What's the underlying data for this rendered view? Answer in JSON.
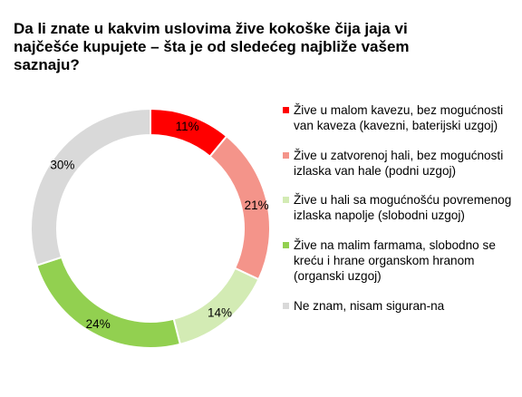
{
  "chart_data": {
    "type": "pie",
    "title": "Da li znate u kakvim uslovima žive kokoške čija jaja vi najčešće kupujete – šta je od sledećeg najbliže vašem saznaju?",
    "donut": true,
    "legend_position": "right",
    "slices": [
      {
        "label": "Žive u malom kavezu, bez mogućnosti van kaveza (kavezni, baterijski uzgoj)",
        "value": 11,
        "display": "11%",
        "color": "#ff0000"
      },
      {
        "label": "Žive u zatvorenoj hali, bez mogućnosti izlaska van hale (podni uzgoj)",
        "value": 21,
        "display": "21%",
        "color": "#f4948a"
      },
      {
        "label": "Žive u hali sa mogućnošću povremenog izlaska napolje (slobodni uzgoj)",
        "value": 14,
        "display": "14%",
        "color": "#d3ebb4"
      },
      {
        "label": "Žive na malim farmama, slobodno se kreću i hrane organskom hranom (organski uzgoj)",
        "value": 24,
        "display": "24%",
        "color": "#92d050"
      },
      {
        "label": "Ne znam, nisam siguran-na",
        "value": 30,
        "display": "30%",
        "color": "#d9d9d9"
      }
    ]
  }
}
